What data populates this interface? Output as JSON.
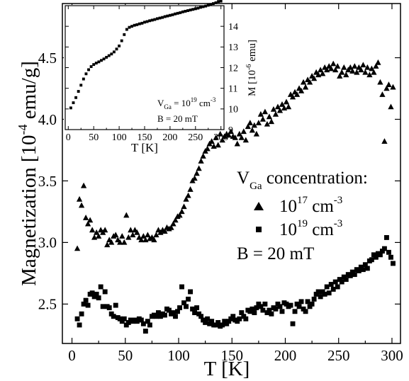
{
  "chart_data": [
    {
      "type": "scatter",
      "xlabel": "T [K]",
      "ylabel": "Magnetization [10",
      "ylabel_exp": "-4",
      "ylabel_unit": " emu/g]",
      "xlim": [
        -9,
        308
      ],
      "ylim": [
        2.18,
        4.94
      ],
      "x_ticks": [
        0,
        50,
        100,
        150,
        200,
        250,
        300
      ],
      "y_ticks": [
        2.5,
        3.0,
        3.5,
        4.0,
        4.5
      ],
      "y_tick_labels": [
        "2.5",
        "3.0",
        "3.5",
        "4.0",
        "4.5"
      ],
      "legend": {
        "heading": "V",
        "heading_sub": "Ga",
        "heading_rest": " concentration:",
        "placement": "center-right",
        "entries": [
          {
            "base": "10",
            "exp": "17",
            "unit": " cm",
            "unit_exp": "-3"
          },
          {
            "base": "10",
            "exp": "19",
            "unit": " cm",
            "unit_exp": "-3"
          }
        ],
        "field_text": "B = 20 mT"
      },
      "series": [
        {
          "marker": "triangle",
          "x": [
            5,
            7,
            9,
            11,
            13,
            15,
            17,
            19,
            21,
            23,
            25,
            27,
            29,
            31,
            33,
            35,
            37,
            39,
            41,
            43,
            45,
            47,
            49,
            51,
            53,
            55,
            57,
            59,
            61,
            63,
            65,
            67,
            69,
            71,
            73,
            75,
            77,
            79,
            81,
            83,
            85,
            87,
            89,
            91,
            93,
            95,
            97,
            99,
            101,
            103,
            105,
            107,
            109,
            111,
            113,
            115,
            117,
            119,
            121,
            123,
            125,
            127,
            129,
            131,
            133,
            135,
            137,
            139,
            141,
            143,
            145,
            147,
            149,
            151,
            153,
            155,
            157,
            159,
            161,
            163,
            165,
            167,
            169,
            171,
            173,
            175,
            177,
            179,
            181,
            183,
            185,
            187,
            189,
            191,
            193,
            195,
            197,
            199,
            201,
            203,
            205,
            207,
            209,
            211,
            213,
            215,
            217,
            219,
            221,
            223,
            225,
            227,
            229,
            231,
            233,
            235,
            237,
            239,
            241,
            243,
            245,
            247,
            249,
            251,
            253,
            255,
            257,
            259,
            261,
            263,
            265,
            267,
            269,
            271,
            273,
            275,
            277,
            279,
            281,
            283,
            285,
            287,
            289,
            291,
            293,
            295,
            297,
            299,
            301
          ],
          "y": [
            2.95,
            3.35,
            3.3,
            3.46,
            3.2,
            3.15,
            3.18,
            3.1,
            3.04,
            3.08,
            3.05,
            3.1,
            3.08,
            3.1,
            2.98,
            3.02,
            3.0,
            3.05,
            3.06,
            3.02,
            3.0,
            3.05,
            3.0,
            3.22,
            3.04,
            3.1,
            3.06,
            3.1,
            3.08,
            3.04,
            3.02,
            3.05,
            3.02,
            3.06,
            3.03,
            3.04,
            3.02,
            3.06,
            3.1,
            3.08,
            3.1,
            3.09,
            3.12,
            3.11,
            3.12,
            3.15,
            3.18,
            3.21,
            3.22,
            3.25,
            3.29,
            3.35,
            3.38,
            3.43,
            3.5,
            3.52,
            3.56,
            3.6,
            3.66,
            3.7,
            3.74,
            3.76,
            3.8,
            3.82,
            3.78,
            3.85,
            3.79,
            3.88,
            3.83,
            3.86,
            3.88,
            3.87,
            3.9,
            3.86,
            3.85,
            3.8,
            3.88,
            3.85,
            3.9,
            3.83,
            3.94,
            3.97,
            3.91,
            3.95,
            3.88,
            3.97,
            4.04,
            4.0,
            4.06,
            3.96,
            4.02,
            3.98,
            4.08,
            4.04,
            4.1,
            4.07,
            4.12,
            4.09,
            4.14,
            4.1,
            4.2,
            4.18,
            4.22,
            4.2,
            4.25,
            4.23,
            4.3,
            4.26,
            4.32,
            4.3,
            4.35,
            4.33,
            4.38,
            4.36,
            4.4,
            4.37,
            4.42,
            4.4,
            4.43,
            4.41,
            4.45,
            4.4,
            4.43,
            4.35,
            4.38,
            4.42,
            4.36,
            4.4,
            4.42,
            4.39,
            4.43,
            4.38,
            4.42,
            4.4,
            4.44,
            4.38,
            4.42,
            4.36,
            4.41,
            4.38,
            4.43,
            4.46,
            4.3,
            4.2,
            3.82,
            4.25,
            4.28,
            4.1,
            4.26
          ]
        },
        {
          "marker": "square",
          "x": [
            5,
            7,
            9,
            11,
            13,
            15,
            17,
            19,
            21,
            23,
            25,
            27,
            29,
            31,
            33,
            35,
            37,
            39,
            41,
            43,
            45,
            47,
            49,
            51,
            53,
            55,
            57,
            59,
            61,
            63,
            65,
            67,
            69,
            71,
            73,
            75,
            77,
            79,
            81,
            83,
            85,
            87,
            89,
            91,
            93,
            95,
            97,
            99,
            101,
            103,
            105,
            107,
            109,
            111,
            113,
            115,
            117,
            119,
            121,
            123,
            125,
            127,
            129,
            131,
            133,
            135,
            137,
            139,
            141,
            143,
            145,
            147,
            149,
            151,
            153,
            155,
            157,
            159,
            161,
            163,
            165,
            167,
            169,
            171,
            173,
            175,
            177,
            179,
            181,
            183,
            185,
            187,
            189,
            191,
            193,
            195,
            197,
            199,
            201,
            203,
            205,
            207,
            209,
            211,
            213,
            215,
            217,
            219,
            221,
            223,
            225,
            227,
            229,
            231,
            233,
            235,
            237,
            239,
            241,
            243,
            245,
            247,
            249,
            251,
            253,
            255,
            257,
            259,
            261,
            263,
            265,
            267,
            269,
            271,
            273,
            275,
            277,
            279,
            281,
            283,
            285,
            287,
            289,
            291,
            293,
            295,
            297,
            299,
            301
          ],
          "y": [
            2.38,
            2.33,
            2.42,
            2.5,
            2.53,
            2.49,
            2.58,
            2.59,
            2.56,
            2.58,
            2.55,
            2.64,
            2.48,
            2.6,
            2.48,
            2.47,
            2.42,
            2.4,
            2.49,
            2.39,
            2.38,
            2.36,
            2.38,
            2.33,
            2.35,
            2.37,
            2.36,
            2.37,
            2.36,
            2.38,
            2.37,
            2.34,
            2.28,
            2.36,
            2.33,
            2.4,
            2.41,
            2.4,
            2.43,
            2.4,
            2.42,
            2.41,
            2.46,
            2.45,
            2.42,
            2.43,
            2.4,
            2.44,
            2.47,
            2.64,
            2.51,
            2.48,
            2.54,
            2.6,
            2.46,
            2.43,
            2.47,
            2.42,
            2.4,
            2.37,
            2.35,
            2.38,
            2.34,
            2.36,
            2.33,
            2.33,
            2.35,
            2.32,
            2.33,
            2.36,
            2.34,
            2.36,
            2.38,
            2.4,
            2.37,
            2.36,
            2.38,
            2.43,
            2.4,
            2.38,
            2.45,
            2.44,
            2.46,
            2.43,
            2.47,
            2.5,
            2.48,
            2.45,
            2.5,
            2.43,
            2.45,
            2.42,
            2.47,
            2.46,
            2.5,
            2.48,
            2.44,
            2.51,
            2.5,
            2.48,
            2.49,
            2.34,
            2.44,
            2.5,
            2.48,
            2.52,
            2.46,
            2.44,
            2.52,
            2.48,
            2.5,
            2.54,
            2.58,
            2.6,
            2.56,
            2.6,
            2.58,
            2.64,
            2.59,
            2.66,
            2.62,
            2.68,
            2.64,
            2.7,
            2.68,
            2.72,
            2.7,
            2.74,
            2.73,
            2.76,
            2.74,
            2.78,
            2.77,
            2.8,
            2.78,
            2.82,
            2.79,
            2.85,
            2.86,
            2.9,
            2.88,
            2.91,
            2.9,
            2.93,
            2.95,
            3.04,
            2.92,
            2.88,
            2.83
          ]
        }
      ]
    },
    {
      "type": "scatter",
      "inset": true,
      "xlabel": "T [K]",
      "ylabel": "M [10",
      "ylabel_exp": "-6",
      "ylabel_unit": " emu]",
      "xlim": [
        -6,
        306
      ],
      "ylim": [
        9,
        15
      ],
      "x_ticks": [
        0,
        50,
        100,
        150,
        200,
        250,
        300
      ],
      "y_ticks": [
        9,
        10,
        11,
        12,
        13,
        14
      ],
      "annotation": {
        "line1_a": "V",
        "line1_sub": "Ga",
        "line1_b": " = 10",
        "line1_exp": "19",
        "line1_c": " cm",
        "line1_exp2": "-3",
        "line2": "B = 20 mT"
      },
      "series": [
        {
          "marker": "square",
          "x": [
            5,
            10,
            15,
            20,
            25,
            30,
            35,
            40,
            45,
            50,
            55,
            60,
            65,
            70,
            75,
            80,
            85,
            90,
            95,
            100,
            105,
            110,
            115,
            120,
            125,
            130,
            135,
            140,
            145,
            150,
            155,
            160,
            165,
            170,
            175,
            180,
            185,
            190,
            195,
            200,
            205,
            210,
            215,
            220,
            225,
            230,
            235,
            240,
            245,
            250,
            255,
            260,
            265,
            270,
            275,
            280,
            285,
            290,
            295,
            300
          ],
          "y": [
            10.05,
            10.3,
            10.55,
            10.85,
            11.15,
            11.45,
            11.7,
            11.9,
            12.05,
            12.15,
            12.22,
            12.28,
            12.35,
            12.42,
            12.5,
            12.58,
            12.66,
            12.76,
            12.9,
            13.05,
            13.3,
            13.6,
            13.85,
            13.95,
            14.0,
            14.05,
            14.08,
            14.12,
            14.15,
            14.2,
            14.23,
            14.27,
            14.3,
            14.33,
            14.37,
            14.4,
            14.43,
            14.47,
            14.5,
            14.53,
            14.56,
            14.6,
            14.63,
            14.66,
            14.7,
            14.73,
            14.76,
            14.79,
            14.82,
            14.85,
            14.88,
            14.92,
            14.95,
            14.98,
            15.02,
            15.06,
            15.1,
            15.14,
            15.2,
            15.22
          ]
        }
      ]
    }
  ]
}
